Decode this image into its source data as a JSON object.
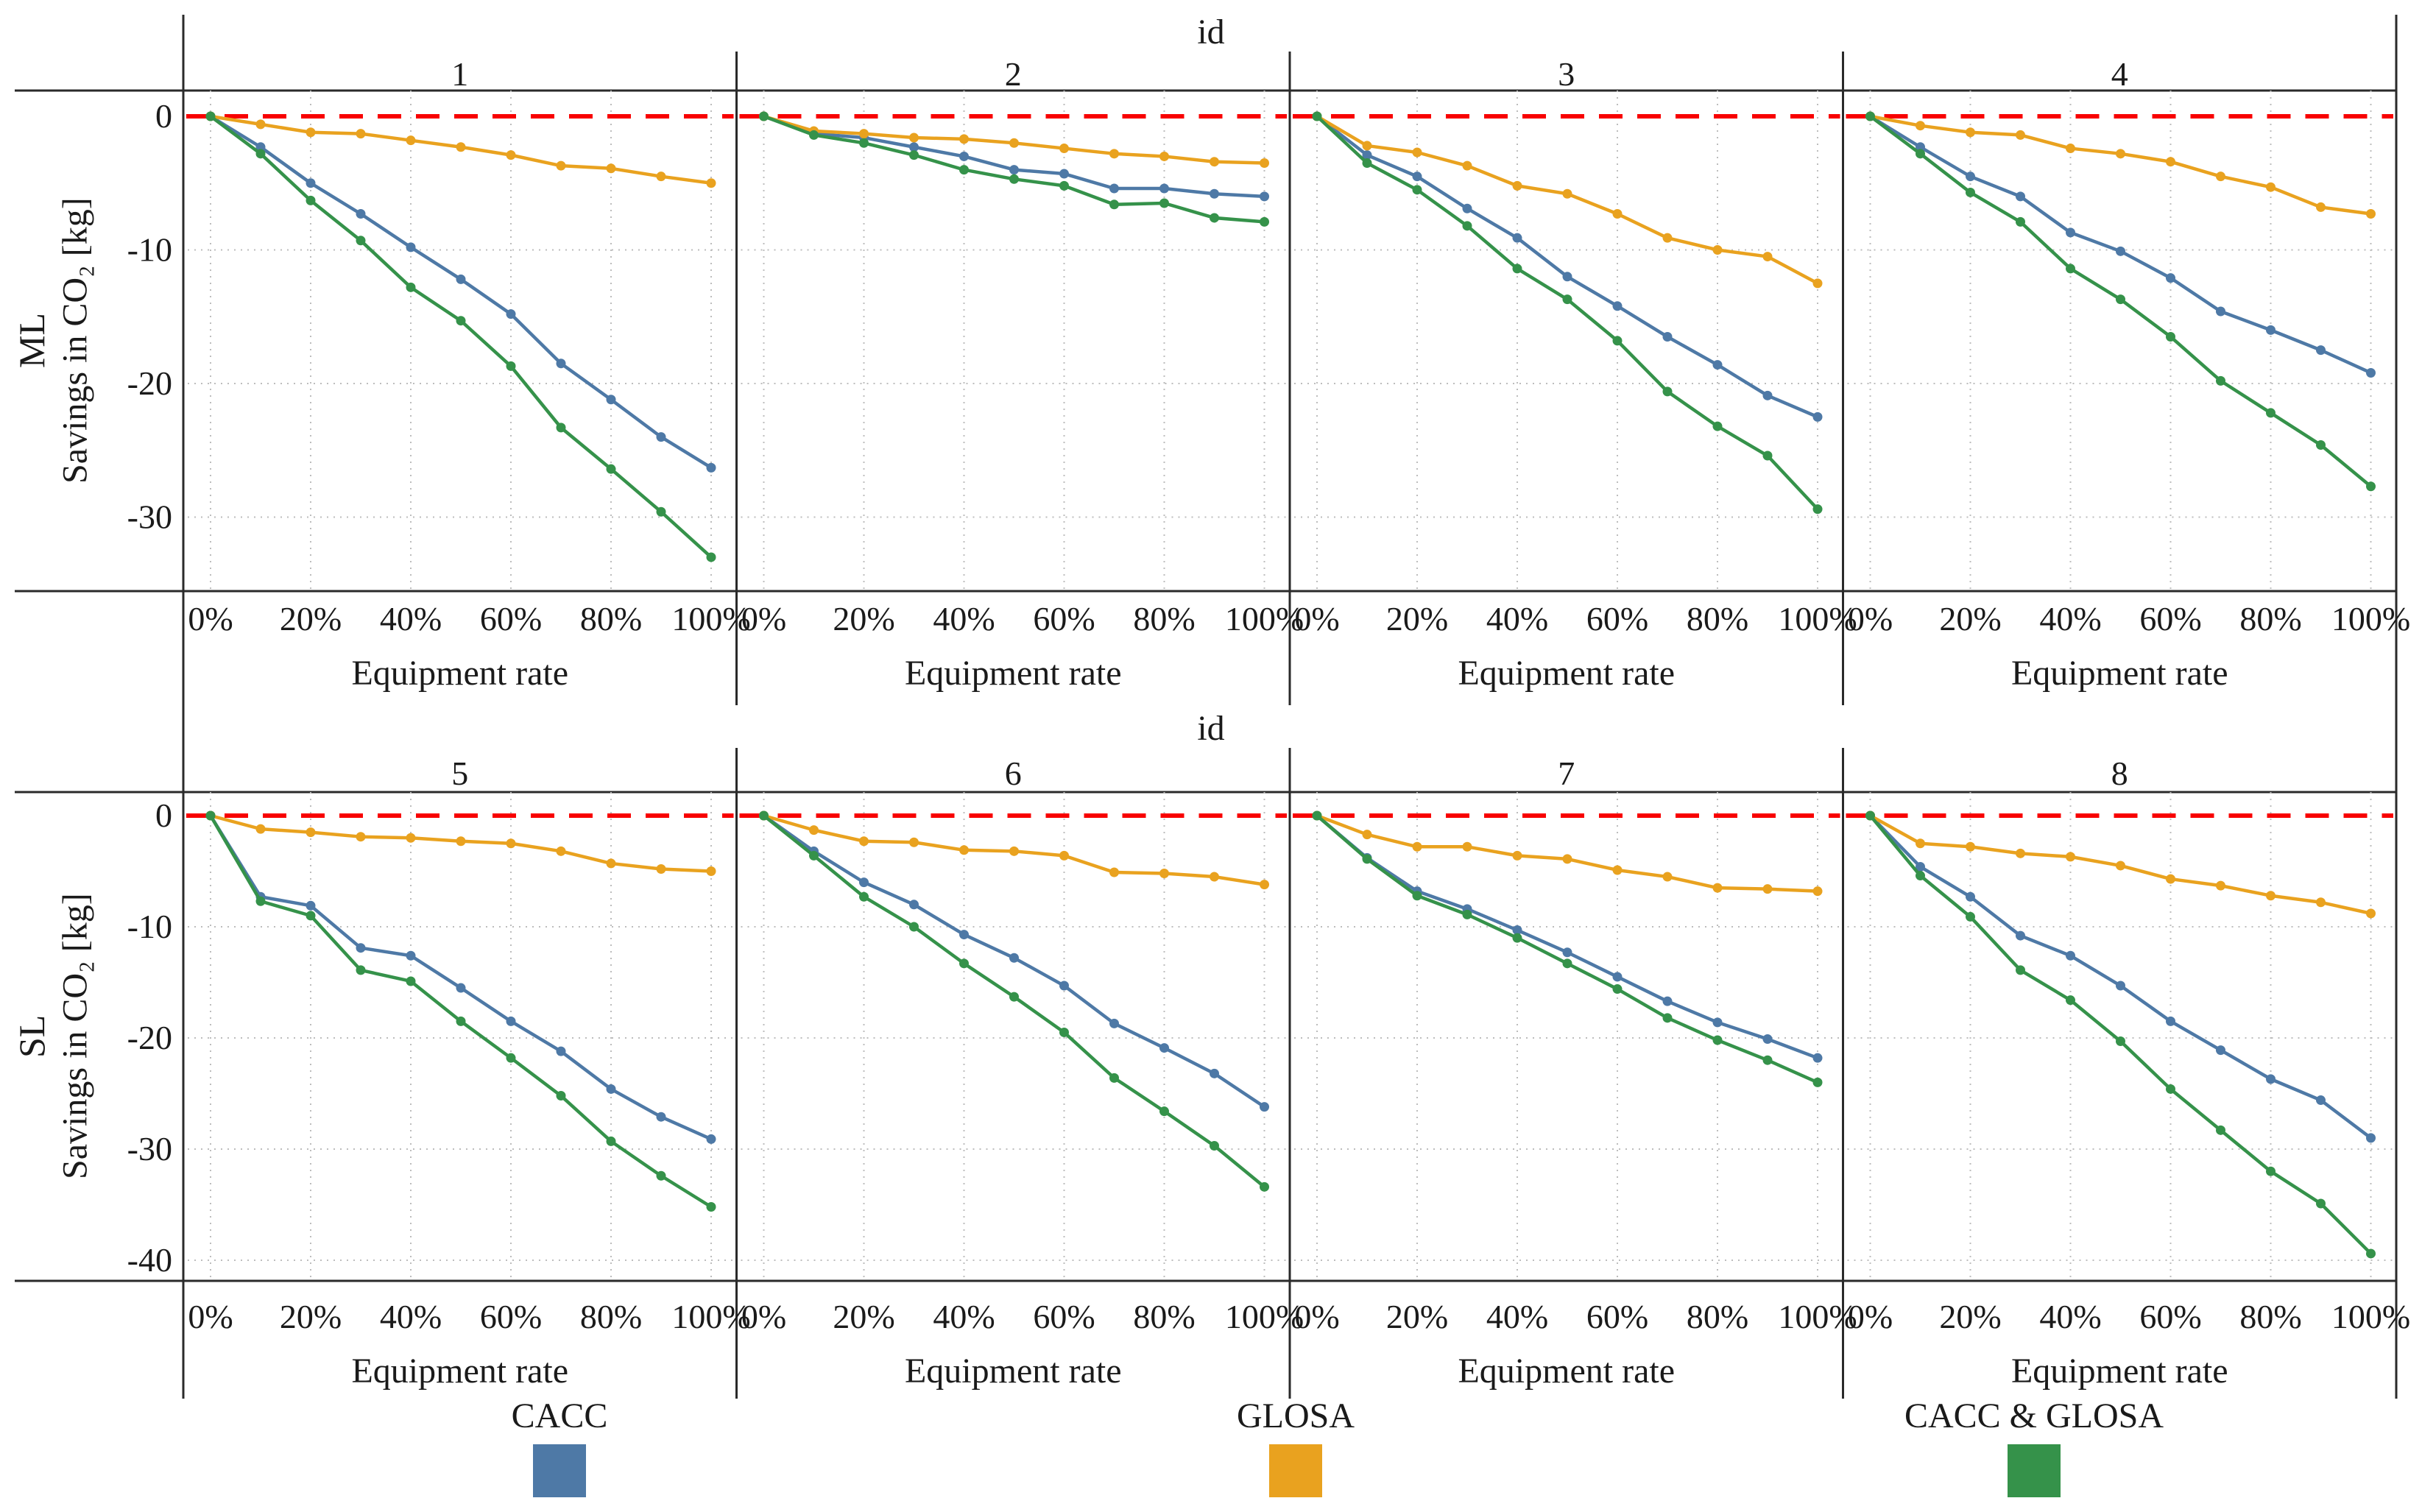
{
  "figure": {
    "facet_strip_title": "id",
    "row_labels": [
      "ML",
      "SL"
    ],
    "ylabel": "Savings in CO₂ [kg]",
    "xlabel": "Equipment rate",
    "legend": [
      {
        "label": "CACC",
        "color": "#4E79A6"
      },
      {
        "label": "GLOSA",
        "color": "#E9A21F"
      },
      {
        "label": "CACC & GLOSA",
        "color": "#35924A"
      }
    ],
    "zero_line_color": "#F80000",
    "grid_color": "#bdbdbd",
    "border_color": "#2a2a2a",
    "text_color": "#1a1a1a"
  },
  "chart_data": {
    "type": "line",
    "x_percent": [
      0,
      10,
      20,
      30,
      40,
      50,
      60,
      70,
      80,
      90,
      100
    ],
    "x_tick_labels": [
      "0%",
      "20%",
      "40%",
      "60%",
      "80%",
      "100%"
    ],
    "xlabel": "Equipment rate",
    "ylabel": "Savings in CO₂ [kg]",
    "legend_position": "bottom",
    "grid": true,
    "series_names": [
      "CACC",
      "GLOSA",
      "CACC & GLOSA"
    ],
    "rows": [
      {
        "row_label": "ML",
        "facet_title": "id",
        "yticks": [
          0,
          -10,
          -20,
          -30
        ],
        "ylim": [
          2.5,
          -35.7
        ],
        "panels": [
          {
            "id": "1",
            "series": {
              "CACC": [
                0,
                -2.3,
                -5.0,
                -7.3,
                -9.8,
                -12.2,
                -14.8,
                -18.5,
                -21.2,
                -24.0,
                -26.3
              ],
              "GLOSA": [
                0,
                -0.6,
                -1.2,
                -1.3,
                -1.8,
                -2.3,
                -2.9,
                -3.7,
                -3.9,
                -4.5,
                -5.0
              ],
              "CACC & GLOSA": [
                0,
                -2.8,
                -6.3,
                -9.3,
                -12.8,
                -15.3,
                -18.7,
                -23.3,
                -26.4,
                -29.6,
                -33.0
              ]
            }
          },
          {
            "id": "2",
            "series": {
              "CACC": [
                0,
                -1.3,
                -1.6,
                -2.3,
                -3.0,
                -4.0,
                -4.3,
                -5.4,
                -5.4,
                -5.8,
                -6.0
              ],
              "GLOSA": [
                0,
                -1.1,
                -1.3,
                -1.6,
                -1.7,
                -2.0,
                -2.4,
                -2.8,
                -3.0,
                -3.4,
                -3.5
              ],
              "CACC & GLOSA": [
                0,
                -1.4,
                -2.0,
                -2.9,
                -4.0,
                -4.7,
                -5.2,
                -6.6,
                -6.5,
                -7.6,
                -7.9
              ]
            }
          },
          {
            "id": "3",
            "series": {
              "CACC": [
                0,
                -2.9,
                -4.5,
                -6.9,
                -9.1,
                -12.0,
                -14.2,
                -16.5,
                -18.6,
                -20.9,
                -22.5
              ],
              "GLOSA": [
                0,
                -2.2,
                -2.7,
                -3.7,
                -5.2,
                -5.8,
                -7.3,
                -9.1,
                -10.0,
                -10.5,
                -12.5
              ],
              "CACC & GLOSA": [
                0,
                -3.5,
                -5.5,
                -8.2,
                -11.4,
                -13.7,
                -16.8,
                -20.6,
                -23.2,
                -25.4,
                -29.4
              ]
            }
          },
          {
            "id": "4",
            "series": {
              "CACC": [
                0,
                -2.3,
                -4.5,
                -6.0,
                -8.7,
                -10.1,
                -12.1,
                -14.6,
                -16.0,
                -17.5,
                -19.2
              ],
              "GLOSA": [
                0,
                -0.7,
                -1.2,
                -1.4,
                -2.4,
                -2.8,
                -3.4,
                -4.5,
                -5.3,
                -6.8,
                -7.3
              ],
              "CACC & GLOSA": [
                0,
                -2.8,
                -5.7,
                -7.9,
                -11.4,
                -13.7,
                -16.5,
                -19.8,
                -22.2,
                -24.6,
                -27.7
              ]
            }
          }
        ]
      },
      {
        "row_label": "SL",
        "facet_title": "id",
        "yticks": [
          0,
          -10,
          -20,
          -30,
          -40
        ],
        "ylim": [
          2.5,
          -41.8
        ],
        "panels": [
          {
            "id": "5",
            "series": {
              "CACC": [
                0,
                -7.3,
                -8.1,
                -11.9,
                -12.6,
                -15.5,
                -18.5,
                -21.2,
                -24.6,
                -27.1,
                -29.1
              ],
              "GLOSA": [
                0,
                -1.2,
                -1.5,
                -1.9,
                -2.0,
                -2.3,
                -2.5,
                -3.2,
                -4.3,
                -4.8,
                -5.0
              ],
              "CACC & GLOSA": [
                0,
                -7.7,
                -9.0,
                -13.9,
                -14.9,
                -18.5,
                -21.8,
                -25.2,
                -29.3,
                -32.4,
                -35.2
              ]
            }
          },
          {
            "id": "6",
            "series": {
              "CACC": [
                0,
                -3.2,
                -6.0,
                -8.0,
                -10.7,
                -12.8,
                -15.3,
                -18.7,
                -20.9,
                -23.2,
                -26.2
              ],
              "GLOSA": [
                0,
                -1.3,
                -2.3,
                -2.4,
                -3.1,
                -3.2,
                -3.6,
                -5.1,
                -5.2,
                -5.5,
                -6.2
              ],
              "CACC & GLOSA": [
                0,
                -3.6,
                -7.3,
                -10.0,
                -13.3,
                -16.3,
                -19.5,
                -23.6,
                -26.6,
                -29.7,
                -33.4
              ]
            }
          },
          {
            "id": "7",
            "series": {
              "CACC": [
                0,
                -3.8,
                -6.8,
                -8.4,
                -10.3,
                -12.3,
                -14.5,
                -16.7,
                -18.6,
                -20.1,
                -21.8
              ],
              "GLOSA": [
                0,
                -1.7,
                -2.8,
                -2.8,
                -3.6,
                -3.9,
                -4.9,
                -5.5,
                -6.5,
                -6.6,
                -6.8
              ],
              "CACC & GLOSA": [
                0,
                -3.9,
                -7.2,
                -8.9,
                -11.0,
                -13.3,
                -15.6,
                -18.2,
                -20.2,
                -22.0,
                -24.0
              ]
            }
          },
          {
            "id": "8",
            "series": {
              "CACC": [
                0,
                -4.6,
                -7.3,
                -10.8,
                -12.6,
                -15.3,
                -18.5,
                -21.1,
                -23.7,
                -25.6,
                -29.0
              ],
              "GLOSA": [
                0,
                -2.5,
                -2.8,
                -3.4,
                -3.7,
                -4.5,
                -5.7,
                -6.3,
                -7.2,
                -7.8,
                -8.8
              ],
              "CACC & GLOSA": [
                0,
                -5.4,
                -9.1,
                -13.9,
                -16.6,
                -20.3,
                -24.6,
                -28.3,
                -32.0,
                -34.9,
                -39.4
              ]
            }
          }
        ]
      }
    ]
  }
}
